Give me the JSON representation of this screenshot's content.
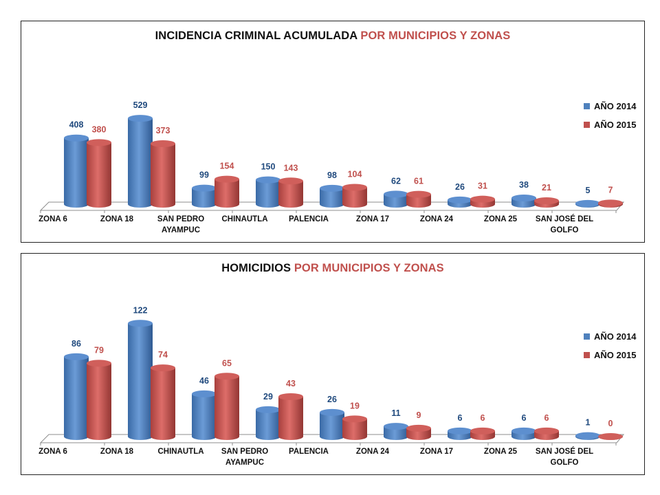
{
  "colors": {
    "blue": "#4f81bd",
    "red": "#c0504d",
    "blue_text": "#1f497d",
    "red_text": "#c0504d"
  },
  "chart_data": [
    {
      "type": "bar",
      "title": {
        "black": "INCIDENCIA CRIMINAL ACUMULADA",
        "red": "POR MUNICIPIOS Y ZONAS"
      },
      "categories": [
        "ZONA 6",
        "ZONA 18",
        "SAN PEDRO AYAMPUC",
        "CHINAUTLA",
        "PALENCIA",
        "ZONA 17",
        "ZONA 24",
        "ZONA 25",
        "SAN JOSÉ DEL GOLFO"
      ],
      "series": [
        {
          "name": "AÑO 2014",
          "values": [
            408,
            529,
            99,
            150,
            98,
            62,
            26,
            38,
            5
          ]
        },
        {
          "name": "AÑO 2015",
          "values": [
            380,
            373,
            154,
            143,
            104,
            61,
            31,
            21,
            7
          ]
        }
      ],
      "legend": "right",
      "grid": false
    },
    {
      "type": "bar",
      "title": {
        "black": "HOMICIDIOS",
        "red": "POR MUNICIPIOS Y ZONAS"
      },
      "categories": [
        "ZONA 6",
        "ZONA 18",
        "CHINAUTLA",
        "SAN PEDRO AYAMPUC",
        "PALENCIA",
        "ZONA 24",
        "ZONA 17",
        "ZONA 25",
        "SAN JOSÉ DEL GOLFO"
      ],
      "series": [
        {
          "name": "AÑO 2014",
          "values": [
            86,
            122,
            46,
            29,
            26,
            11,
            6,
            6,
            1
          ]
        },
        {
          "name": "AÑO 2015",
          "values": [
            79,
            74,
            65,
            43,
            19,
            9,
            6,
            6,
            0
          ]
        }
      ],
      "legend": "right",
      "grid": false
    }
  ]
}
